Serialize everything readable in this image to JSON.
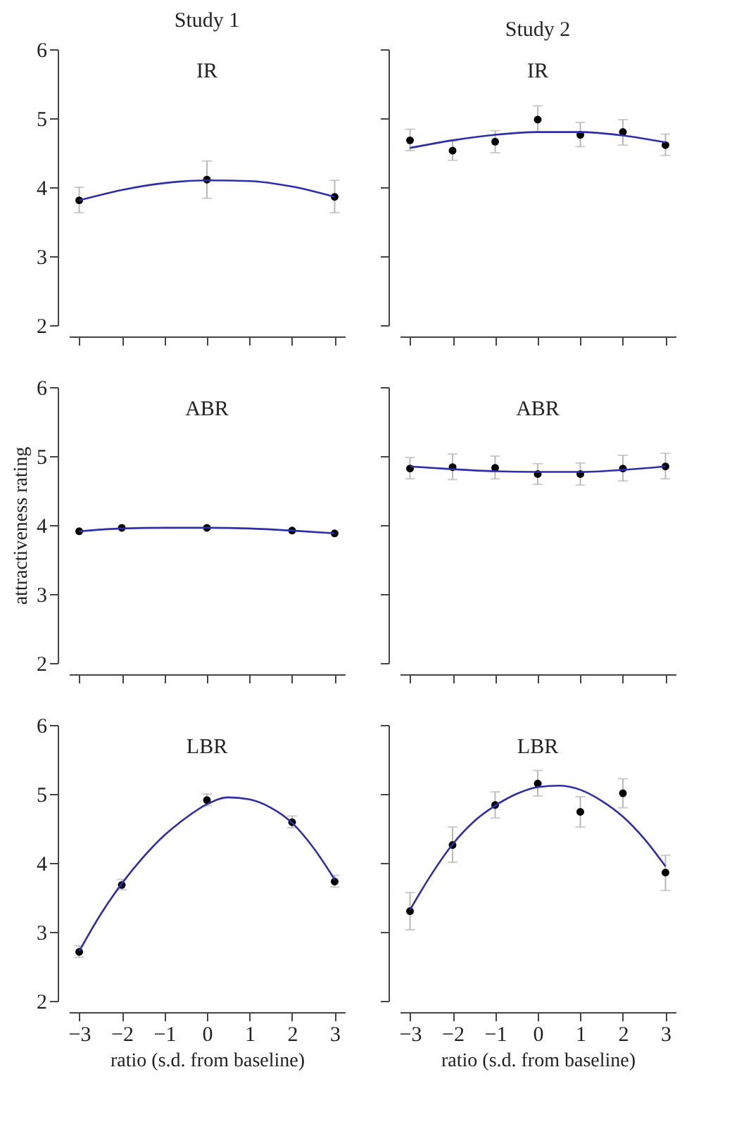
{
  "chart_data": [
    {
      "type": "scatter",
      "title": "Study 1",
      "annotations": [
        "IR"
      ],
      "x": [
        -3,
        0,
        3
      ],
      "xlim": [
        -3.24,
        3.24
      ],
      "xticks": [
        -3,
        -2,
        -1,
        0,
        1,
        2,
        3
      ],
      "ylim": [
        2,
        6
      ],
      "yticks": [
        2,
        3,
        4,
        5,
        6
      ],
      "tick_labels": "y",
      "series": [
        {
          "marker": "circle",
          "color": "#000000",
          "values": [
            3.81,
            4.11,
            3.86
          ],
          "errors": [
            [
              3.63,
              4.0
            ],
            [
              3.84,
              4.38
            ],
            [
              3.63,
              4.1
            ]
          ]
        },
        {
          "type": "line",
          "color": "#2e2ea8",
          "x": [
            -3,
            -2,
            -1,
            0,
            1,
            2,
            3
          ],
          "values": [
            3.81,
            3.96,
            4.06,
            4.1,
            4.09,
            4.01,
            3.86
          ]
        }
      ]
    },
    {
      "type": "scatter",
      "title": "Study 2",
      "annotations": [
        "IR"
      ],
      "x": [
        -3,
        -2,
        -1,
        0,
        1,
        2,
        3
      ],
      "xlim": [
        -3.24,
        3.24
      ],
      "xticks": [
        -3,
        -2,
        -1,
        0,
        1,
        2,
        3
      ],
      "ylim": [
        2,
        6
      ],
      "yticks": [
        2,
        3,
        4,
        5,
        6
      ],
      "tick_labels": false,
      "series": [
        {
          "marker": "circle",
          "color": "#000000",
          "values": [
            4.68,
            4.53,
            4.66,
            4.98,
            4.76,
            4.8,
            4.61
          ],
          "errors": [
            [
              4.53,
              4.84
            ],
            [
              4.39,
              4.67
            ],
            [
              4.5,
              4.82
            ],
            [
              4.8,
              5.18
            ],
            [
              4.59,
              4.94
            ],
            [
              4.61,
              4.98
            ],
            [
              4.46,
              4.77
            ]
          ]
        },
        {
          "type": "line",
          "color": "#2e2ea8",
          "x": [
            -3,
            -2,
            -1,
            0,
            1,
            2,
            3
          ],
          "values": [
            4.57,
            4.68,
            4.76,
            4.8,
            4.8,
            4.75,
            4.65
          ]
        }
      ]
    },
    {
      "type": "scatter",
      "ylabel": "attractiveness rating",
      "annotations": [
        "ABR"
      ],
      "x": [
        -3,
        -2,
        0,
        2,
        3
      ],
      "xlim": [
        -3.24,
        3.24
      ],
      "xticks": [
        -3,
        -2,
        -1,
        0,
        1,
        2,
        3
      ],
      "ylim": [
        2,
        6
      ],
      "yticks": [
        2,
        3,
        4,
        5,
        6
      ],
      "tick_labels": "y",
      "series": [
        {
          "marker": "circle",
          "color": "#000000",
          "values": [
            3.91,
            3.96,
            3.96,
            3.92,
            3.88
          ]
        },
        {
          "type": "line",
          "color": "#2e2ea8",
          "x": [
            -3,
            -2,
            -1,
            0,
            1,
            2,
            3
          ],
          "values": [
            3.91,
            3.95,
            3.96,
            3.96,
            3.95,
            3.92,
            3.88
          ]
        }
      ]
    },
    {
      "type": "scatter",
      "annotations": [
        "ABR"
      ],
      "x": [
        -3,
        -2,
        -1,
        0,
        1,
        2,
        3
      ],
      "xlim": [
        -3.24,
        3.24
      ],
      "xticks": [
        -3,
        -2,
        -1,
        0,
        1,
        2,
        3
      ],
      "ylim": [
        2,
        6
      ],
      "yticks": [
        2,
        3,
        4,
        5,
        6
      ],
      "tick_labels": false,
      "series": [
        {
          "marker": "circle",
          "color": "#000000",
          "values": [
            4.82,
            4.84,
            4.83,
            4.74,
            4.74,
            4.82,
            4.85
          ],
          "errors": [
            [
              4.67,
              4.98
            ],
            [
              4.66,
              5.03
            ],
            [
              4.67,
              5.0
            ],
            [
              4.59,
              4.89
            ],
            [
              4.58,
              4.9
            ],
            [
              4.64,
              5.01
            ],
            [
              4.67,
              5.04
            ]
          ]
        },
        {
          "type": "line",
          "color": "#2e2ea8",
          "x": [
            -3,
            -2,
            -1,
            0,
            1,
            2,
            3
          ],
          "values": [
            4.85,
            4.81,
            4.78,
            4.77,
            4.77,
            4.8,
            4.85
          ]
        }
      ]
    },
    {
      "type": "scatter",
      "xlabel": "ratio (s.d. from baseline)",
      "annotations": [
        "LBR"
      ],
      "x": [
        -3,
        -2,
        0,
        2,
        3
      ],
      "xlim": [
        -3.24,
        3.24
      ],
      "xticks": [
        {
          "value": -3,
          "label": "−3"
        },
        {
          "value": -2,
          "label": "−2"
        },
        {
          "value": -1,
          "label": "−1"
        },
        0,
        1,
        2,
        3
      ],
      "ylim": [
        2,
        6
      ],
      "yticks": [
        2,
        3,
        4,
        5,
        6
      ],
      "series": [
        {
          "marker": "circle",
          "color": "#000000",
          "values": [
            2.71,
            3.68,
            4.91,
            4.59,
            3.73
          ],
          "errors": [
            [
              2.63,
              2.8
            ],
            [
              3.61,
              3.76
            ],
            [
              4.83,
              5.0
            ],
            [
              4.51,
              4.68
            ],
            [
              3.65,
              3.82
            ]
          ]
        },
        {
          "type": "line",
          "color": "#2e2ea8",
          "x": [
            -3,
            -2.5,
            -2,
            -1.5,
            -1,
            -0.5,
            0,
            0.5,
            1,
            1.5,
            2,
            2.5,
            3
          ],
          "values": [
            2.72,
            3.25,
            3.7,
            4.08,
            4.4,
            4.65,
            4.85,
            4.95,
            4.92,
            4.8,
            4.58,
            4.22,
            3.76
          ]
        }
      ]
    },
    {
      "type": "scatter",
      "xlabel": "ratio (s.d. from baseline)",
      "annotations": [
        "LBR"
      ],
      "x": [
        -3,
        -2,
        -1,
        0,
        1,
        2,
        3
      ],
      "xlim": [
        -3.24,
        3.24
      ],
      "xticks": [
        {
          "value": -3,
          "label": "−3"
        },
        {
          "value": -2,
          "label": "−2"
        },
        {
          "value": -1,
          "label": "−1"
        },
        0,
        1,
        2,
        3
      ],
      "ylim": [
        2,
        6
      ],
      "yticks": [
        2,
        3,
        4,
        5,
        6
      ],
      "tick_labels": "x",
      "series": [
        {
          "marker": "circle",
          "color": "#000000",
          "values": [
            3.3,
            4.26,
            4.84,
            5.15,
            4.74,
            5.01,
            3.86
          ],
          "errors": [
            [
              3.03,
              3.57
            ],
            [
              4.01,
              4.52
            ],
            [
              4.65,
              5.03
            ],
            [
              4.97,
              5.34
            ],
            [
              4.52,
              4.96
            ],
            [
              4.8,
              5.22
            ],
            [
              3.6,
              4.11
            ]
          ]
        },
        {
          "type": "line",
          "color": "#2e2ea8",
          "x": [
            -3,
            -2.5,
            -2,
            -1.5,
            -1,
            -0.5,
            0,
            0.5,
            1,
            1.5,
            2,
            2.5,
            3
          ],
          "values": [
            3.32,
            3.83,
            4.27,
            4.6,
            4.83,
            5.0,
            5.1,
            5.12,
            5.06,
            4.9,
            4.67,
            4.35,
            3.95
          ]
        }
      ]
    }
  ]
}
